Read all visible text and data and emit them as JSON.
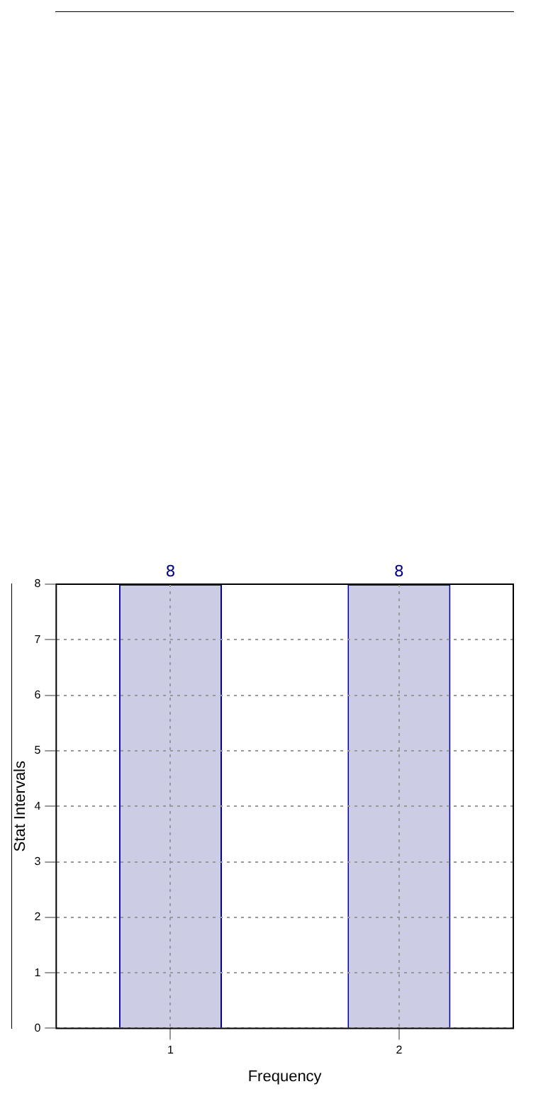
{
  "chart_data": {
    "type": "bar",
    "xlabel": "Frequency",
    "ylabel": "Stat Intervals",
    "categories": [
      "1",
      "2"
    ],
    "series": [
      {
        "color": "#cccce5",
        "values": [
          8,
          8
        ]
      }
    ],
    "ylim": [
      0,
      8
    ],
    "yticks": [
      0,
      1,
      2,
      3,
      4,
      5,
      6,
      7,
      8
    ],
    "grid": true,
    "data_labels": true,
    "legend": false
  }
}
